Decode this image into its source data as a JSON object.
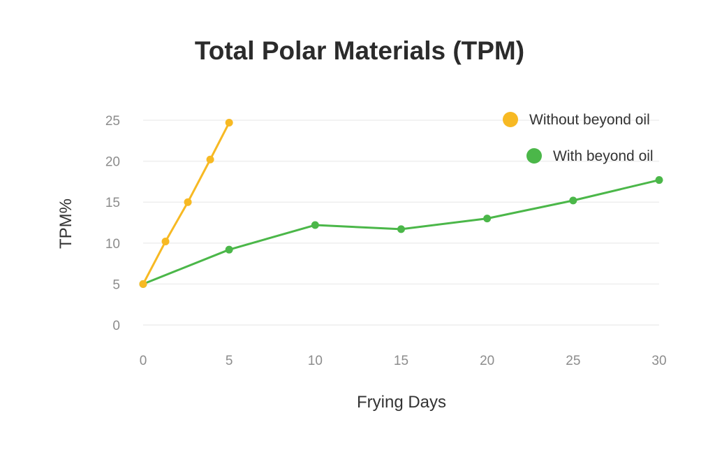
{
  "chart_data": {
    "type": "line",
    "title": "Total Polar Materials (TPM)",
    "xlabel": "Frying Days",
    "ylabel": "TPM%",
    "xlim": [
      0,
      30
    ],
    "ylim": [
      0,
      25
    ],
    "x_ticks": [
      0,
      5,
      10,
      15,
      20,
      25,
      30
    ],
    "y_ticks": [
      0,
      5,
      10,
      15,
      20,
      25
    ],
    "grid": "horizontal",
    "legend_position": "top-right",
    "series": [
      {
        "name": "Without beyond oil",
        "color": "#F7B923",
        "x": [
          0,
          1.3,
          2.6,
          3.9,
          5
        ],
        "values": [
          5,
          10.2,
          15,
          20.2,
          24.7
        ]
      },
      {
        "name": "With beyond oil",
        "color": "#4BB749",
        "x": [
          0,
          5,
          10,
          15,
          20,
          25,
          30
        ],
        "values": [
          5,
          9.2,
          12.2,
          11.7,
          13.0,
          15.2,
          17.7
        ]
      }
    ]
  }
}
